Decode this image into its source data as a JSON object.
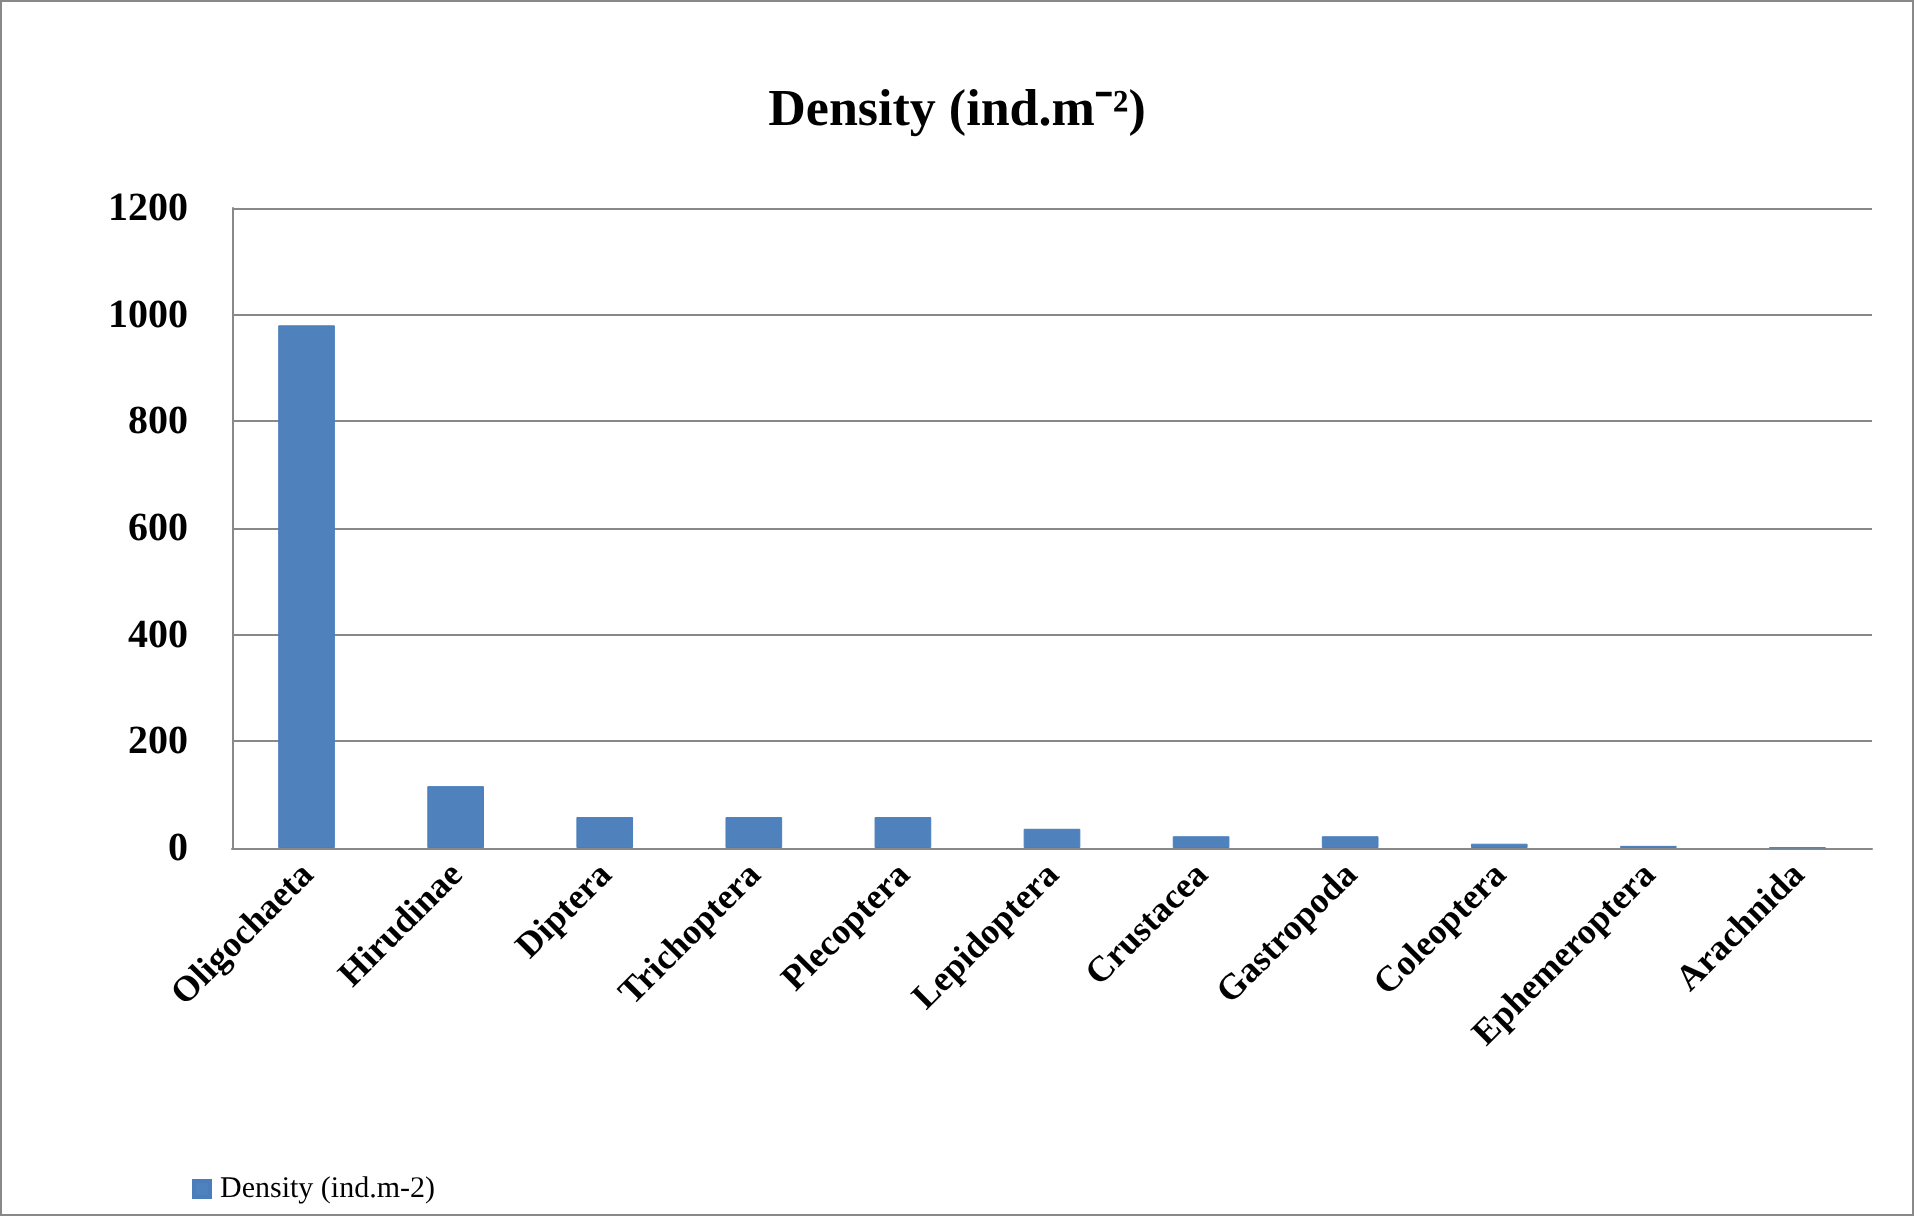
{
  "chart_data": {
    "type": "bar",
    "title": "Density (ind.m⁻²)",
    "categories": [
      "Oligochaeta",
      "Hirudinae",
      "Diptera",
      "Trichoptera",
      "Plecoptera",
      "Lepidoptera",
      "Crustacea",
      "Gastropoda",
      "Coleoptera",
      "Ephemeroptera",
      "Arachnida"
    ],
    "series": [
      {
        "name": "Density (ind.m-2)",
        "color": "#4f81bd",
        "values": [
          980,
          116,
          58,
          58,
          58,
          36,
          22,
          22,
          8,
          4,
          1
        ]
      }
    ],
    "ylim": [
      0,
      1200
    ],
    "yticks": [
      0,
      200,
      400,
      600,
      800,
      1000,
      1200
    ],
    "grid": "y",
    "legend": "bottom left"
  }
}
